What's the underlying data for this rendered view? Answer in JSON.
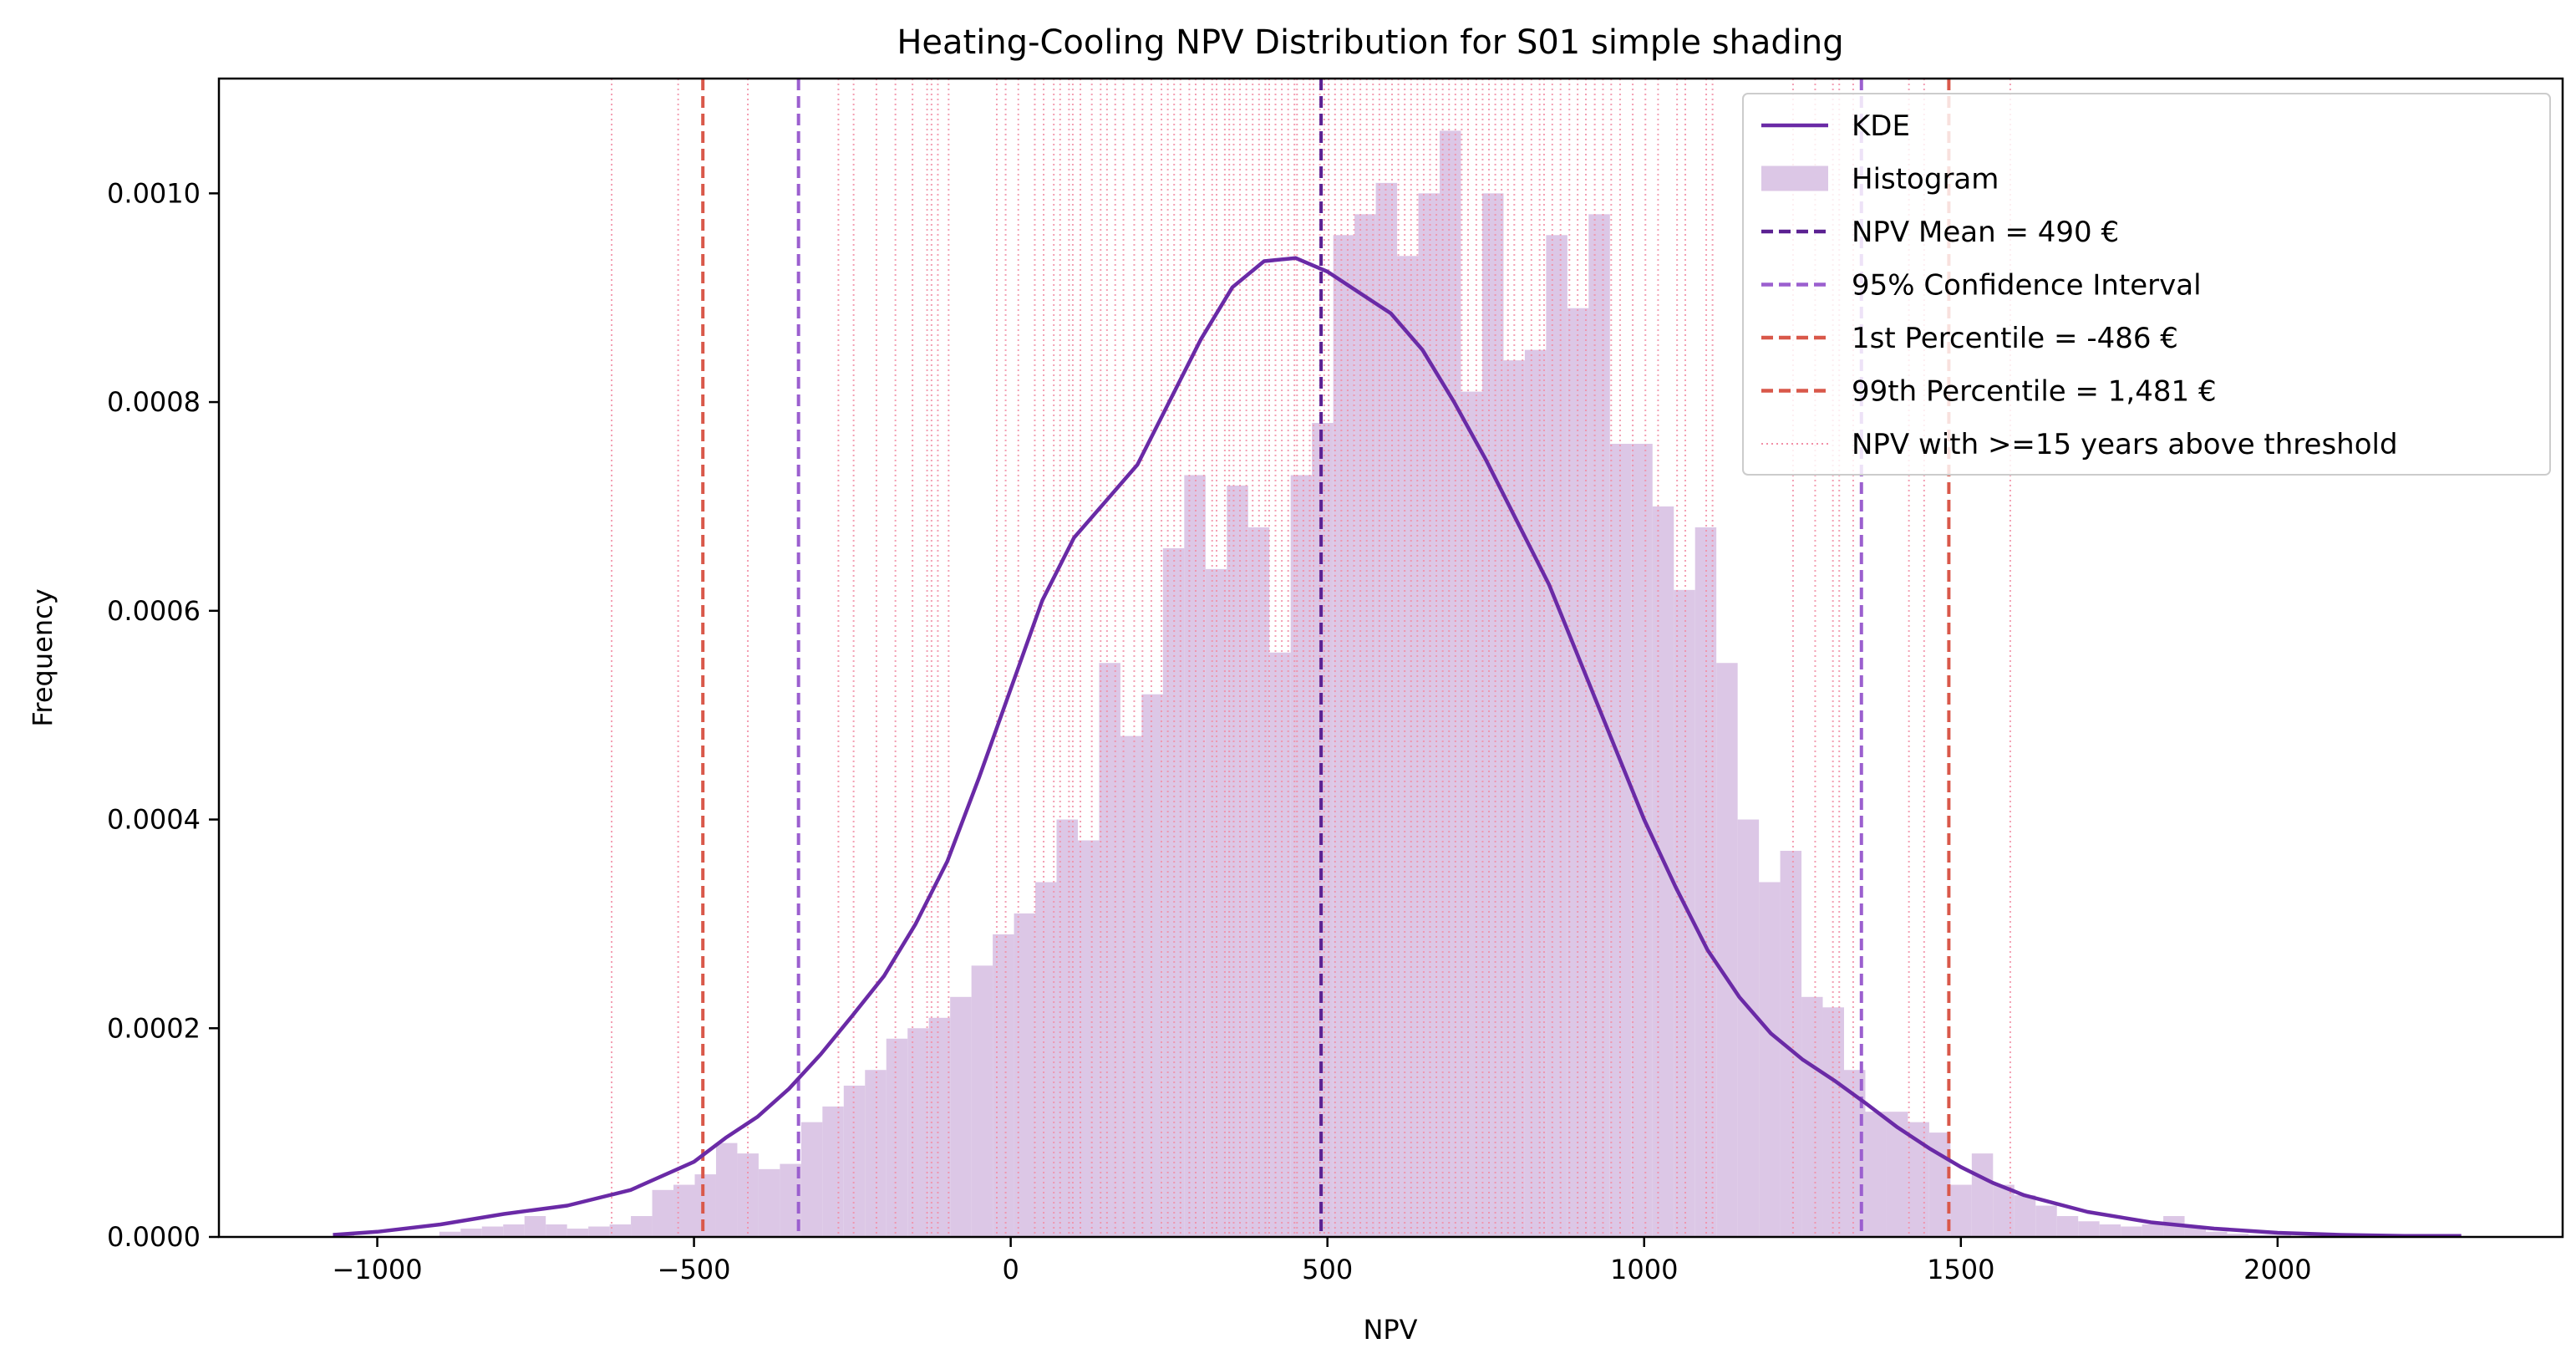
{
  "chart_data": {
    "type": "histogram",
    "title": "Heating-Cooling NPV Distribution for S01 simple shading",
    "xlabel": "NPV",
    "ylabel": "Frequency",
    "xlim": [
      -1250,
      2450
    ],
    "ylim": [
      0,
      0.00111
    ],
    "x_ticks": [
      -1000,
      -500,
      0,
      500,
      1000,
      1500,
      2000
    ],
    "x_tick_labels": [
      "−1000",
      "−500",
      "0",
      "500",
      "1000",
      "1500",
      "2000"
    ],
    "y_ticks": [
      0,
      0.0002,
      0.0004,
      0.0006,
      0.0008,
      0.001
    ],
    "y_tick_labels": [
      "0.0000",
      "0.0002",
      "0.0004",
      "0.0006",
      "0.0008",
      "0.0010"
    ],
    "legend_position": "top-right",
    "colors": {
      "kde": "#6a2aa6",
      "histogram": "#dcc7e6",
      "mean": "#5b2192",
      "ci": "#9b5fcf",
      "percentile": "#d9584a",
      "threshold": "#f28fa6"
    },
    "histogram": {
      "bin_start": -1070,
      "bin_width": 33.6,
      "values": [
        2e-06,
        0,
        0,
        0,
        0,
        5e-06,
        8e-06,
        1e-05,
        1.2e-05,
        2e-05,
        1.2e-05,
        8e-06,
        1e-05,
        1.2e-05,
        2e-05,
        4.5e-05,
        5e-05,
        6e-05,
        9e-05,
        8e-05,
        6.5e-05,
        7e-05,
        0.00011,
        0.000125,
        0.000145,
        0.00016,
        0.00019,
        0.0002,
        0.00021,
        0.00023,
        0.00026,
        0.00029,
        0.00031,
        0.00034,
        0.0004,
        0.00038,
        0.00055,
        0.00048,
        0.00052,
        0.00066,
        0.00073,
        0.00064,
        0.00072,
        0.00068,
        0.00056,
        0.00073,
        0.00078,
        0.00096,
        0.00098,
        0.00101,
        0.00094,
        0.001,
        0.00106,
        0.00081,
        0.001,
        0.00084,
        0.00085,
        0.00096,
        0.00089,
        0.00098,
        0.00076,
        0.00076,
        0.0007,
        0.00062,
        0.00068,
        0.00055,
        0.0004,
        0.00034,
        0.00037,
        0.00023,
        0.00022,
        0.00016,
        0.00012,
        0.00012,
        0.00011,
        0.0001,
        5e-05,
        8e-05,
        5e-05,
        4e-05,
        3e-05,
        2e-05,
        1.5e-05,
        1.2e-05,
        1e-05,
        1.2e-05,
        2e-05,
        1e-05,
        5e-06,
        3e-06,
        2e-06,
        2e-06,
        1e-06,
        1e-06,
        1e-06,
        2e-06,
        1e-06,
        1e-06,
        1e-06,
        2e-06
      ]
    },
    "kde": {
      "x": [
        -1070,
        -1000,
        -900,
        -800,
        -700,
        -600,
        -500,
        -450,
        -400,
        -350,
        -300,
        -250,
        -200,
        -150,
        -100,
        -50,
        0,
        50,
        100,
        150,
        200,
        250,
        300,
        350,
        400,
        450,
        500,
        550,
        600,
        650,
        700,
        750,
        800,
        850,
        900,
        950,
        1000,
        1050,
        1100,
        1150,
        1200,
        1250,
        1300,
        1350,
        1400,
        1450,
        1500,
        1550,
        1600,
        1700,
        1800,
        1900,
        2000,
        2100,
        2200,
        2290
      ],
      "y": [
        2e-06,
        5e-06,
        1.2e-05,
        2.2e-05,
        3e-05,
        4.5e-05,
        7.2e-05,
        9.5e-05,
        0.000115,
        0.000142,
        0.000175,
        0.000212,
        0.00025,
        0.0003,
        0.00036,
        0.00044,
        0.000525,
        0.00061,
        0.00067,
        0.000705,
        0.00074,
        0.0008,
        0.00086,
        0.00091,
        0.000935,
        0.000938,
        0.000925,
        0.000905,
        0.000885,
        0.00085,
        0.0008,
        0.000745,
        0.000685,
        0.000625,
        0.00055,
        0.000475,
        0.0004,
        0.000335,
        0.000275,
        0.00023,
        0.000195,
        0.00017,
        0.00015,
        0.000128,
        0.000105,
        8.5e-05,
        6.7e-05,
        5.2e-05,
        4e-05,
        2.4e-05,
        1.4e-05,
        8e-06,
        4e-06,
        2e-06,
        1e-06,
        1e-06
      ]
    },
    "vlines": {
      "mean": 490,
      "ci": [
        -335,
        1343
      ],
      "p1": -486,
      "p99": 1481,
      "threshold": [
        -630,
        -525,
        -415,
        -272,
        -248,
        -212,
        -182,
        -155,
        -132,
        -125,
        -115,
        -98,
        -22,
        -8,
        12,
        38,
        52,
        68,
        78,
        92,
        98,
        110,
        128,
        142,
        152,
        165,
        178,
        195,
        208,
        222,
        238,
        248,
        258,
        268,
        282,
        292,
        305,
        318,
        325,
        338,
        345,
        352,
        362,
        372,
        382,
        392,
        402,
        408,
        418,
        428,
        438,
        448,
        452,
        462,
        472,
        478,
        488,
        495,
        502,
        512,
        522,
        532,
        542,
        552,
        562,
        572,
        582,
        592,
        602,
        612,
        622,
        632,
        642,
        652,
        662,
        672,
        682,
        692,
        702,
        712,
        722,
        735,
        745,
        755,
        765,
        775,
        785,
        795,
        808,
        822,
        835,
        842,
        855,
        868,
        882,
        895,
        908,
        922,
        935,
        948,
        962,
        982,
        1002,
        1022,
        1052,
        1065,
        1098,
        1108,
        1235,
        1270,
        1298,
        1308,
        1330,
        1418,
        1442,
        1578
      ]
    },
    "legend": [
      {
        "label": "KDE",
        "style": "line",
        "color": "#6a2aa6"
      },
      {
        "label": "Histogram",
        "style": "patch",
        "color": "#dcc7e6"
      },
      {
        "label": "NPV Mean = 490 €",
        "style": "dashed",
        "color": "#5b2192"
      },
      {
        "label": "95% Confidence Interval",
        "style": "dashed",
        "color": "#9b5fcf"
      },
      {
        "label": "1st Percentile = -486 €",
        "style": "dashed",
        "color": "#d9584a"
      },
      {
        "label": "99th Percentile = 1,481 €",
        "style": "dashed",
        "color": "#d9584a"
      },
      {
        "label": "NPV with >=15 years above threshold",
        "style": "dotted",
        "color": "#f28fa6"
      }
    ]
  }
}
